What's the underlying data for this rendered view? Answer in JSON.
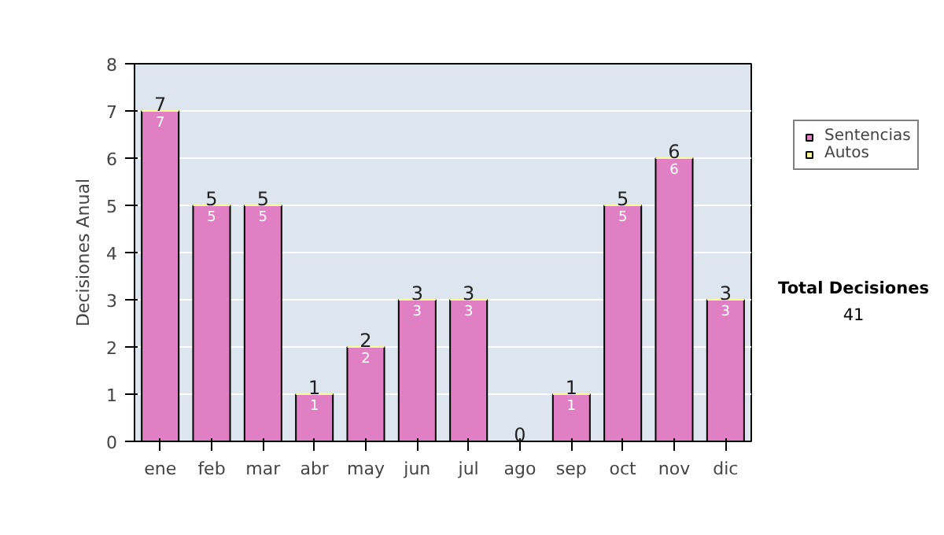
{
  "chart_data": {
    "type": "bar",
    "stacked": true,
    "ylabel": "Decisiones Anual",
    "categories": [
      "ene",
      "feb",
      "mar",
      "abr",
      "may",
      "jun",
      "jul",
      "ago",
      "sep",
      "oct",
      "nov",
      "dic"
    ],
    "series": [
      {
        "name": "Sentencias",
        "color": "#e07fc4",
        "values": [
          7,
          5,
          5,
          1,
          2,
          3,
          3,
          0,
          1,
          5,
          6,
          3
        ],
        "value_labels": [
          "7",
          "5",
          "5",
          "1",
          "2",
          "3",
          "3",
          null,
          "1",
          "5",
          "6",
          "3"
        ]
      },
      {
        "name": "Autos",
        "color": "#ffff99",
        "values": [
          0,
          0,
          0,
          0,
          0,
          0,
          0,
          0,
          0,
          0,
          0,
          0
        ]
      }
    ],
    "totals": [
      "7",
      "5",
      "5",
      "1",
      "2",
      "3",
      "3",
      "0",
      "1",
      "5",
      "6",
      "3"
    ],
    "ylim": [
      0,
      8
    ],
    "yticks": [
      0,
      1,
      2,
      3,
      4,
      5,
      6,
      7,
      8
    ],
    "grid": "y",
    "legend": "right",
    "annotations": [
      "Total Decisiones",
      "41"
    ]
  }
}
